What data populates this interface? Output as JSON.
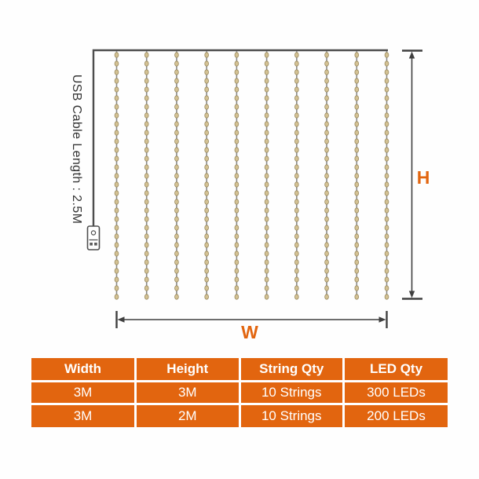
{
  "diagram": {
    "cable_label": "USB Cable Length : 2.5M",
    "height_label": "H",
    "width_label": "W",
    "string_count": 10,
    "beads_per_string": 29,
    "colors": {
      "accent": "#e2650f",
      "frame": "#4d4d4d",
      "string": "#8a8a8a",
      "bead_fill": "#d4c294",
      "bead_stroke": "#9a8a5e"
    }
  },
  "table": {
    "headers": [
      "Width",
      "Height",
      "String Qty",
      "LED Qty"
    ],
    "rows": [
      [
        "3M",
        "3M",
        "10 Strings",
        "300 LEDs"
      ],
      [
        "3M",
        "2M",
        "10 Strings",
        "200 LEDs"
      ]
    ],
    "colors": {
      "background": "#e2650f",
      "grid": "#ffffff",
      "text": "#ffffff"
    }
  }
}
